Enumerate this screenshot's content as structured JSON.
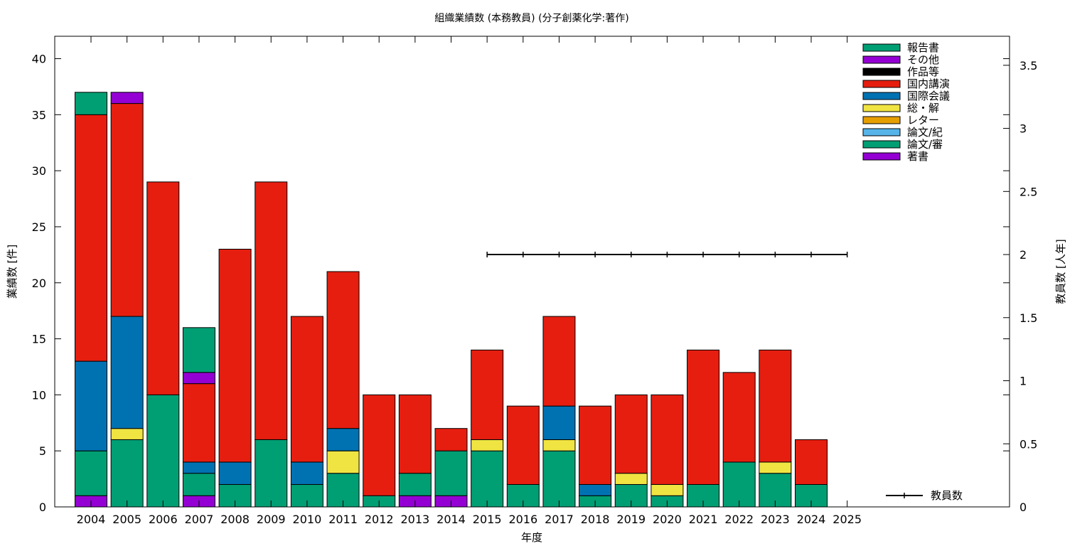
{
  "chart_data": {
    "type": "bar",
    "stacked": true,
    "title": "組織業績数 (本務教員) (分子創薬化学:著作)",
    "xlabel": "年度",
    "ylabel": "業績数 [件]",
    "y2label": "教員数 [人年]",
    "ylim": [
      0,
      42
    ],
    "y2lim": [
      0,
      3.73
    ],
    "yticks": [
      "0",
      "5",
      "10",
      "15",
      "20",
      "25",
      "30",
      "35",
      "40"
    ],
    "y2ticks": [
      "0",
      "0.5",
      "1",
      "1.5",
      "2",
      "2.5",
      "3",
      "3.5"
    ],
    "grid": false,
    "legend_position": "top-right",
    "categories": [
      "2004",
      "2005",
      "2006",
      "2007",
      "2008",
      "2009",
      "2010",
      "2011",
      "2012",
      "2013",
      "2014",
      "2015",
      "2016",
      "2017",
      "2018",
      "2019",
      "2020",
      "2021",
      "2022",
      "2023",
      "2024",
      "2025"
    ],
    "series": [
      {
        "name": "著書",
        "color": "#9400d3",
        "values": [
          1,
          0,
          0,
          1,
          0,
          0,
          0,
          0,
          0,
          1,
          1,
          0,
          0,
          0,
          0,
          0,
          0,
          0,
          0,
          0,
          0,
          0
        ]
      },
      {
        "name": "論文/審",
        "color": "#009e73",
        "values": [
          4,
          6,
          10,
          2,
          2,
          6,
          2,
          3,
          1,
          2,
          4,
          5,
          2,
          5,
          1,
          2,
          1,
          2,
          4,
          3,
          2,
          0
        ]
      },
      {
        "name": "論文/紀",
        "color": "#56b4e9",
        "values": [
          0,
          0,
          0,
          0,
          0,
          0,
          0,
          0,
          0,
          0,
          0,
          0,
          0,
          0,
          0,
          0,
          0,
          0,
          0,
          0,
          0,
          0
        ]
      },
      {
        "name": "レター",
        "color": "#e69f00",
        "values": [
          0,
          0,
          0,
          0,
          0,
          0,
          0,
          0,
          0,
          0,
          0,
          0,
          0,
          0,
          0,
          0,
          0,
          0,
          0,
          0,
          0,
          0
        ]
      },
      {
        "name": "総・解",
        "color": "#f0e442",
        "values": [
          0,
          1,
          0,
          0,
          0,
          0,
          0,
          2,
          0,
          0,
          0,
          1,
          0,
          1,
          0,
          1,
          1,
          0,
          0,
          1,
          0,
          0
        ]
      },
      {
        "name": "国際会議",
        "color": "#0072b2",
        "values": [
          8,
          10,
          0,
          1,
          2,
          0,
          2,
          2,
          0,
          0,
          0,
          0,
          0,
          3,
          1,
          0,
          0,
          0,
          0,
          0,
          0,
          0
        ]
      },
      {
        "name": "国内講演",
        "color": "#e51e10",
        "values": [
          22,
          19,
          19,
          7,
          19,
          23,
          13,
          14,
          9,
          7,
          2,
          8,
          7,
          8,
          7,
          7,
          8,
          12,
          8,
          10,
          4,
          0
        ]
      },
      {
        "name": "作品等",
        "color": "#000000",
        "values": [
          0,
          0,
          0,
          0,
          0,
          0,
          0,
          0,
          0,
          0,
          0,
          0,
          0,
          0,
          0,
          0,
          0,
          0,
          0,
          0,
          0,
          0
        ]
      },
      {
        "name": "その他",
        "color": "#9400d3",
        "values": [
          0,
          1,
          0,
          1,
          0,
          0,
          0,
          0,
          0,
          0,
          0,
          0,
          0,
          0,
          0,
          0,
          0,
          0,
          0,
          0,
          0,
          0
        ]
      },
      {
        "name": "報告書",
        "color": "#009e73",
        "values": [
          2,
          0,
          0,
          4,
          0,
          0,
          0,
          0,
          0,
          0,
          0,
          0,
          0,
          0,
          0,
          0,
          0,
          0,
          0,
          0,
          0,
          0
        ]
      }
    ],
    "line_series": {
      "name": "教員数",
      "color": "#000000",
      "axis": "y2",
      "values": [
        null,
        null,
        null,
        null,
        null,
        null,
        null,
        null,
        null,
        null,
        null,
        2,
        2,
        2,
        2,
        2,
        2,
        2,
        2,
        2,
        2,
        2
      ]
    }
  }
}
